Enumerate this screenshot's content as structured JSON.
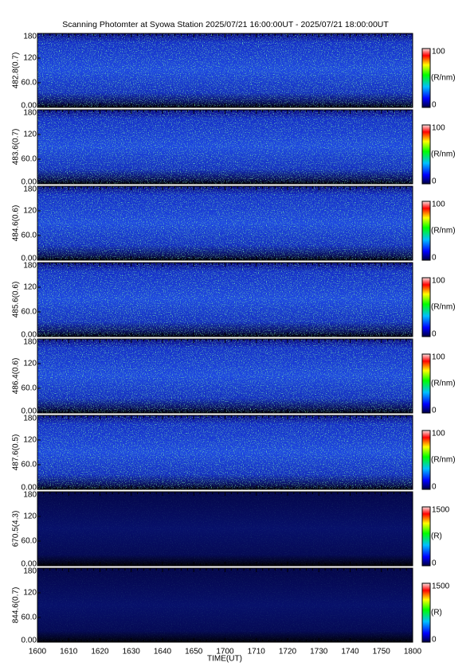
{
  "title": "Scanning Photomter at Syowa Station 2025/07/21 16:00:00UT - 2025/07/21 18:00:00UT",
  "xlabel": "TIME(UT)",
  "xticks": [
    "1600",
    "1610",
    "1620",
    "1630",
    "1640",
    "1650",
    "1700",
    "1710",
    "1720",
    "1730",
    "1740",
    "1750",
    "1800"
  ],
  "chart_data": [
    {
      "type": "heatmap",
      "ylabel": "482.8(0.7)",
      "ylim": [
        0,
        180
      ],
      "yticks": [
        {
          "value": 0,
          "label": "0.00"
        },
        {
          "value": 60,
          "label": "60.0"
        },
        120,
        180
      ],
      "clim": [
        0,
        100
      ],
      "cticks": [
        0,
        100
      ],
      "clabel": "(R/nm)"
    },
    {
      "type": "heatmap",
      "ylabel": "483.6(0.7)",
      "ylim": [
        0,
        180
      ],
      "yticks": [
        {
          "value": 0,
          "label": "0.00"
        },
        {
          "value": 60,
          "label": "60.0"
        },
        120,
        180
      ],
      "clim": [
        0,
        100
      ],
      "cticks": [
        0,
        100
      ],
      "clabel": "(R/nm)"
    },
    {
      "type": "heatmap",
      "ylabel": "484.6(0.6)",
      "ylim": [
        0,
        180
      ],
      "yticks": [
        {
          "value": 0,
          "label": "0.00"
        },
        {
          "value": 60,
          "label": "60.0"
        },
        120,
        180
      ],
      "clim": [
        0,
        100
      ],
      "cticks": [
        0,
        100
      ],
      "clabel": "(R/nm)"
    },
    {
      "type": "heatmap",
      "ylabel": "485.6(0.6)",
      "ylim": [
        0,
        180
      ],
      "yticks": [
        {
          "value": 0,
          "label": "0.00"
        },
        {
          "value": 60,
          "label": "60.0"
        },
        120,
        180
      ],
      "clim": [
        0,
        100
      ],
      "cticks": [
        0,
        100
      ],
      "clabel": "(R/nm)"
    },
    {
      "type": "heatmap",
      "ylabel": "486.4(0.6)",
      "ylim": [
        0,
        180
      ],
      "yticks": [
        {
          "value": 0,
          "label": "0.00"
        },
        {
          "value": 60,
          "label": "60.0"
        },
        120,
        180
      ],
      "clim": [
        0,
        100
      ],
      "cticks": [
        0,
        100
      ],
      "clabel": "(R/nm)"
    },
    {
      "type": "heatmap",
      "ylabel": "487.6(0.5)",
      "ylim": [
        0,
        180
      ],
      "yticks": [
        {
          "value": 0,
          "label": "0.00"
        },
        {
          "value": 60,
          "label": "60.0"
        },
        120,
        180
      ],
      "clim": [
        0,
        100
      ],
      "cticks": [
        0,
        100
      ],
      "clabel": "(R/nm)"
    },
    {
      "type": "heatmap",
      "ylabel": "670.5(4.3)",
      "ylim": [
        0,
        180
      ],
      "yticks": [
        {
          "value": 0,
          "label": "0.00"
        },
        {
          "value": 60,
          "label": "60.0"
        },
        120,
        180
      ],
      "clim": [
        0,
        1500
      ],
      "cticks": [
        0,
        1500
      ],
      "clabel": "(R)"
    },
    {
      "type": "heatmap",
      "ylabel": "844.6(0.7)",
      "ylim": [
        0,
        180
      ],
      "yticks": [
        {
          "value": 0,
          "label": "0.00"
        },
        {
          "value": 60,
          "label": "60.0"
        },
        120,
        180
      ],
      "clim": [
        0,
        1500
      ],
      "cticks": [
        0,
        1500
      ],
      "clabel": "(R)"
    }
  ]
}
